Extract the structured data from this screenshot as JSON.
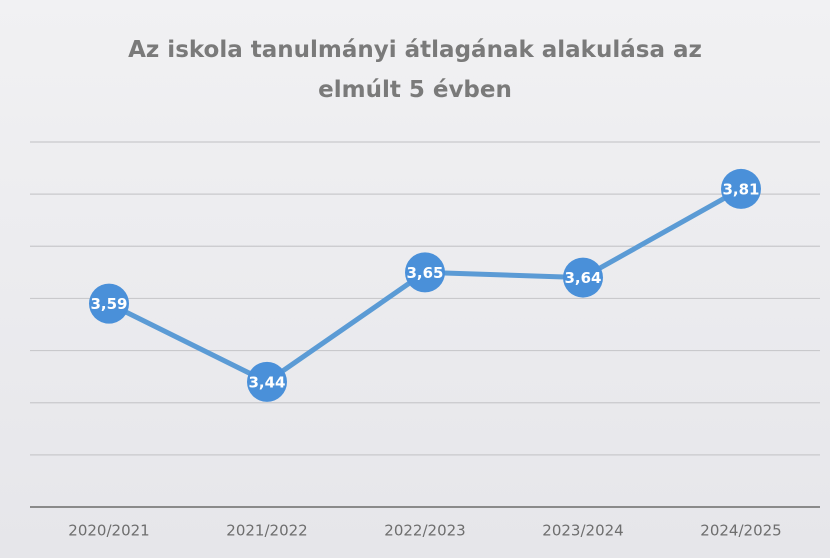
{
  "chart_data": {
    "type": "line",
    "title": "Az iskola tanulmányi átlagának alakulása az elmúlt 5 évben",
    "categories": [
      "2020/2021",
      "2021/2022",
      "2022/2023",
      "2023/2024",
      "2024/2025"
    ],
    "values": [
      3.59,
      3.44,
      3.65,
      3.64,
      3.81
    ],
    "value_labels": [
      "3,59",
      "3,44",
      "3,65",
      "3,64",
      "3,81"
    ],
    "color": "#4a90d9",
    "ylim": [
      3.2,
      3.9
    ],
    "yticks": [
      3.2,
      3.3,
      3.4,
      3.5,
      3.6,
      3.7,
      3.8,
      3.9
    ],
    "grid": true
  }
}
